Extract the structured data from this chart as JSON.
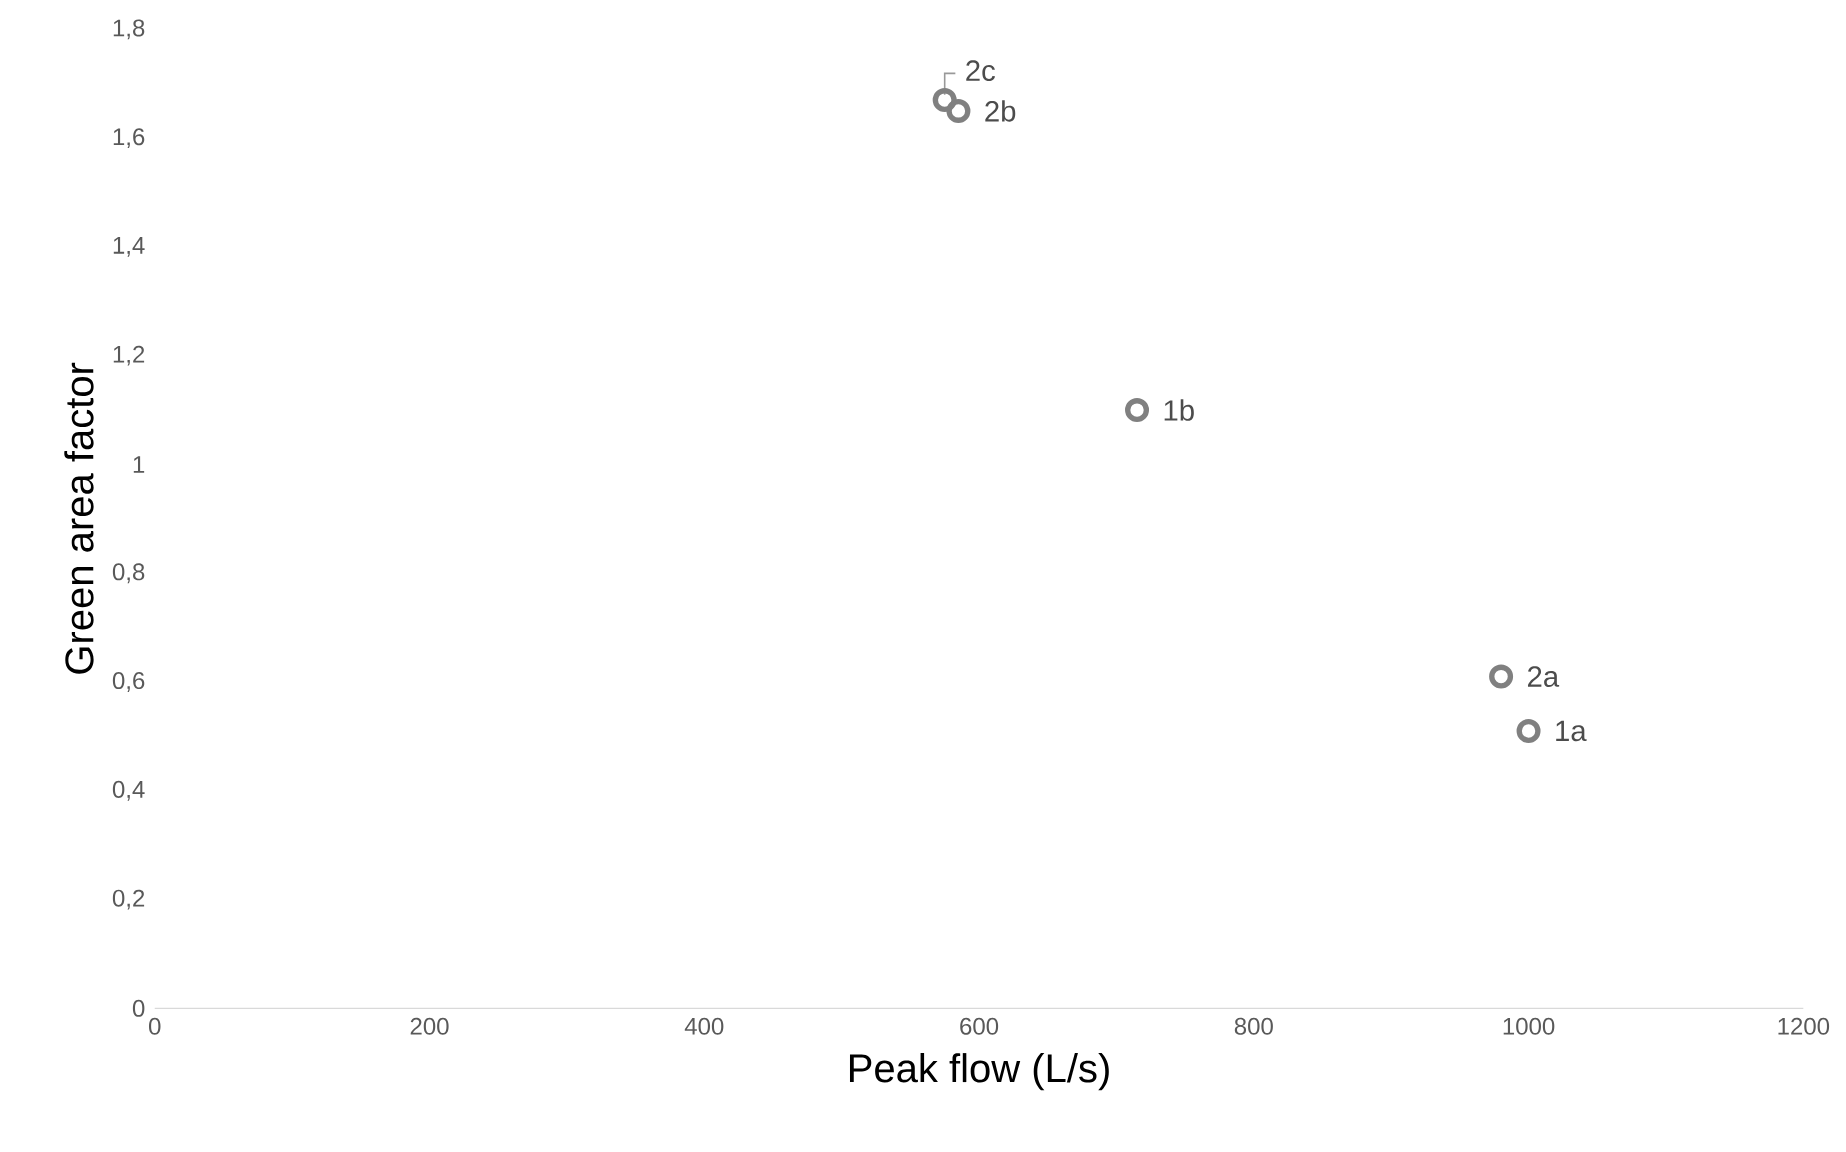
{
  "chart_data": {
    "type": "scatter",
    "xlabel": "Peak flow (L/s)",
    "ylabel": "Green area factor",
    "x": [
      575,
      585,
      715,
      980,
      1000
    ],
    "values": [
      1.67,
      1.65,
      1.1,
      0.61,
      0.51
    ],
    "color": "#808080",
    "marker": "circle",
    "grid": false,
    "xlim": [
      0,
      1200
    ],
    "xticks": [
      0,
      200,
      400,
      600,
      800,
      1000,
      1200
    ],
    "ylim": [
      0,
      1.8
    ],
    "yticks": [
      0,
      {
        "value": 0.2,
        "label": "0,2"
      },
      {
        "value": 0.4,
        "label": "0,4"
      },
      {
        "value": 0.6,
        "label": "0,6"
      },
      {
        "value": 0.8,
        "label": "0,8"
      },
      1,
      {
        "value": 1.2,
        "label": "1,2"
      },
      {
        "value": 1.4,
        "label": "1,4"
      },
      {
        "value": 1.6,
        "label": "1,6"
      },
      {
        "value": 1.8,
        "label": "1,8"
      }
    ],
    "annotations": [
      {
        "text": "2c",
        "x": 575,
        "y": 1.67
      },
      {
        "text": "2b",
        "x": 585,
        "y": 1.65
      },
      {
        "text": "1b",
        "x": 715,
        "y": 1.1
      },
      {
        "text": "2a",
        "x": 980,
        "y": 0.61
      },
      {
        "text": "1a",
        "x": 1000,
        "y": 0.51
      }
    ]
  }
}
